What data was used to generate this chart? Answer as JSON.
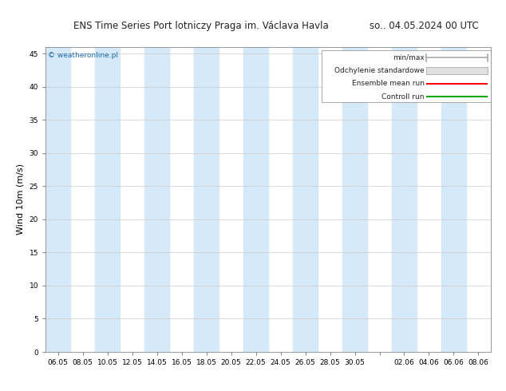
{
  "title": "ENS Time Series Port lotniczy Praga im. Václava Havla",
  "title_right": "so.. 04.05.2024 00 UTC",
  "ylabel": "Wind 10m (m/s)",
  "watermark": "© weatheronline.pl",
  "ylim": [
    0,
    46
  ],
  "yticks": [
    0,
    5,
    10,
    15,
    20,
    25,
    30,
    35,
    40,
    45
  ],
  "x_labels": [
    "06.05",
    "08.05",
    "10.05",
    "12.05",
    "14.05",
    "16.05",
    "18.05",
    "20.05",
    "22.05",
    "24.05",
    "26.05",
    "28.05",
    "30.05",
    "",
    "02.06",
    "04.06",
    "06.06",
    "08.06"
  ],
  "n_ticks": 18,
  "band_color": "#d6e9f8",
  "band_alpha": 1.0,
  "bg_color": "#ffffff",
  "plot_bg": "#ffffff",
  "title_fontsize": 8.5,
  "ylabel_fontsize": 8,
  "tick_fontsize": 6.5,
  "legend_fontsize": 6.5,
  "legend_items": [
    "min/max",
    "Odchylenie standardowe",
    "Ensemble mean run",
    "Controll run"
  ],
  "legend_colors": [
    "#aaaaaa",
    "#cccccc",
    "#ff0000",
    "#00aa00"
  ],
  "legend_styles": [
    "minmax",
    "box",
    "line",
    "line"
  ],
  "n_bands": 9,
  "watermark_color": "#1a6aab"
}
